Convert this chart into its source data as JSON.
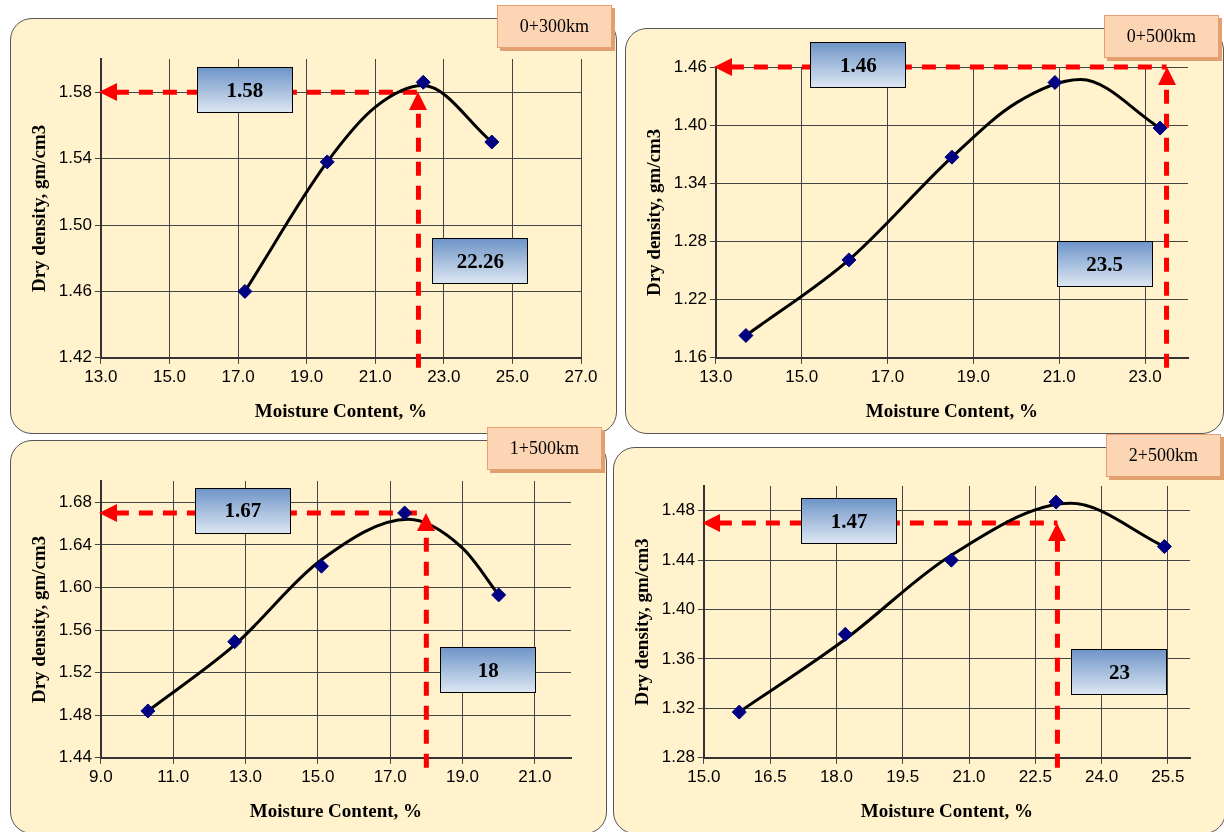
{
  "chart_data": [
    {
      "type": "scatter",
      "title": "0+300km",
      "xlabel": "Moisture Content, %",
      "ylabel": "Dry density, gm/cm3",
      "xlim": [
        13,
        27
      ],
      "xticks": [
        {
          "value": 13,
          "label": "13.0"
        },
        {
          "value": 15,
          "label": "15.0"
        },
        {
          "value": 17,
          "label": "17.0"
        },
        {
          "value": 19,
          "label": "19.0"
        },
        {
          "value": 21,
          "label": "21.0"
        },
        {
          "value": 23,
          "label": "23.0"
        },
        {
          "value": 25,
          "label": "25.0"
        },
        {
          "value": 27,
          "label": "27.0"
        }
      ],
      "ylim": [
        1.42,
        1.6
      ],
      "yticks": [
        1.42,
        1.46,
        {
          "value": 1.5,
          "label": "1.50"
        },
        1.54,
        1.58
      ],
      "grid": true,
      "legend": false,
      "series": [
        {
          "type": "scatter",
          "marker": "diamond",
          "color": "#000080",
          "x": [
            17.2,
            19.6,
            22.4,
            24.4
          ],
          "values": [
            1.46,
            1.538,
            1.586,
            1.55
          ]
        },
        {
          "type": "line",
          "marker": "none",
          "color": "#000000",
          "x": [
            17.2,
            19.6,
            21.0,
            22.4,
            24.4
          ],
          "values": [
            1.46,
            1.538,
            1.571,
            1.584,
            1.55
          ]
        }
      ],
      "ref_lines": [
        {
          "axis": "y",
          "value": 1.58,
          "label": "1.58",
          "color": "#ff0000",
          "line_style": "dashed"
        },
        {
          "axis": "x",
          "value": 22.26,
          "label": "22.26",
          "color": "#ff0000",
          "line_style": "dashed"
        }
      ]
    },
    {
      "type": "scatter",
      "title": "0+500km",
      "xlabel": "Moisture Content, %",
      "ylabel": "Dry density, gm/cm3",
      "xlim": [
        13,
        24
      ],
      "xticks": [
        {
          "value": 13,
          "label": "13.0"
        },
        {
          "value": 15,
          "label": "15.0"
        },
        {
          "value": 17,
          "label": "17.0"
        },
        {
          "value": 19,
          "label": "19.0"
        },
        {
          "value": 21,
          "label": "21.0"
        },
        {
          "value": 23,
          "label": "23.0"
        }
      ],
      "ylim": [
        1.16,
        1.46
      ],
      "yticks": [
        1.16,
        1.22,
        1.28,
        1.34,
        {
          "value": 1.4,
          "label": "1.40"
        },
        1.46
      ],
      "grid": true,
      "legend": false,
      "series": [
        {
          "type": "scatter",
          "marker": "diamond",
          "color": "#000080",
          "x": [
            13.7,
            16.1,
            18.5,
            20.9,
            23.35
          ],
          "values": [
            1.183,
            1.261,
            1.367,
            1.444,
            1.397
          ]
        },
        {
          "type": "line",
          "marker": "none",
          "color": "#000000",
          "x": [
            13.7,
            16.1,
            18.5,
            20.0,
            21.5,
            23.35
          ],
          "values": [
            1.183,
            1.261,
            1.367,
            1.423,
            1.447,
            1.397
          ]
        }
      ],
      "ref_lines": [
        {
          "axis": "y",
          "value": 1.46,
          "label": "1.46",
          "color": "#ff0000",
          "line_style": "dashed"
        },
        {
          "axis": "x",
          "value": 23.5,
          "label": "23.5",
          "color": "#ff0000",
          "line_style": "dashed"
        }
      ]
    },
    {
      "type": "scatter",
      "title": "1+500km",
      "xlabel": "Moisture Content, %",
      "ylabel": "Dry density, gm/cm3",
      "xlim": [
        9,
        22
      ],
      "xticks": [
        {
          "value": 9,
          "label": "9.0"
        },
        {
          "value": 11,
          "label": "11.0"
        },
        {
          "value": 13,
          "label": "13.0"
        },
        {
          "value": 15,
          "label": "15.0"
        },
        {
          "value": 17,
          "label": "17.0"
        },
        {
          "value": 19,
          "label": "19.0"
        },
        {
          "value": 21,
          "label": "21.0"
        }
      ],
      "ylim": [
        1.44,
        1.7
      ],
      "yticks": [
        1.44,
        1.48,
        1.52,
        1.56,
        {
          "value": 1.6,
          "label": "1.60"
        },
        1.64,
        1.68
      ],
      "grid": true,
      "legend": false,
      "series": [
        {
          "type": "scatter",
          "marker": "diamond",
          "color": "#000080",
          "x": [
            10.3,
            12.7,
            15.1,
            17.4,
            20.0
          ],
          "values": [
            1.484,
            1.549,
            1.62,
            1.67,
            1.593
          ]
        },
        {
          "type": "line",
          "marker": "none",
          "color": "#000000",
          "x": [
            10.3,
            12.7,
            15.1,
            17.5,
            19.0,
            20.0
          ],
          "values": [
            1.484,
            1.546,
            1.626,
            1.664,
            1.637,
            1.593
          ]
        }
      ],
      "ref_lines": [
        {
          "axis": "y",
          "value": 1.67,
          "label": "1.67",
          "color": "#ff0000",
          "line_style": "dashed"
        },
        {
          "axis": "x",
          "value": 18,
          "label": "18",
          "color": "#ff0000",
          "line_style": "dashed"
        }
      ]
    },
    {
      "type": "scatter",
      "title": "2+500km",
      "xlabel": "Moisture Content, %",
      "ylabel": "Dry density, gm/cm3",
      "xlim": [
        15,
        26
      ],
      "xticks": [
        {
          "value": 15,
          "label": "15.0"
        },
        16.5,
        {
          "value": 18,
          "label": "18.0"
        },
        19.5,
        {
          "value": 21,
          "label": "21.0"
        },
        22.5,
        {
          "value": 24,
          "label": "24.0"
        },
        25.5
      ],
      "ylim": [
        1.28,
        1.5
      ],
      "yticks": [
        1.28,
        1.32,
        1.36,
        {
          "value": 1.4,
          "label": "1.40"
        },
        1.44,
        1.48
      ],
      "grid": true,
      "legend": false,
      "series": [
        {
          "type": "scatter",
          "marker": "diamond",
          "color": "#000080",
          "x": [
            15.8,
            18.2,
            20.6,
            22.97,
            25.42
          ],
          "values": [
            1.317,
            1.38,
            1.44,
            1.487,
            1.451
          ]
        },
        {
          "type": "line",
          "marker": "none",
          "color": "#000000",
          "x": [
            15.8,
            18.2,
            20.6,
            23.3,
            25.42
          ],
          "values": [
            1.317,
            1.376,
            1.444,
            1.486,
            1.451
          ]
        }
      ],
      "ref_lines": [
        {
          "axis": "y",
          "value": 1.47,
          "label": "1.47",
          "color": "#ff0000",
          "line_style": "dashed"
        },
        {
          "axis": "x",
          "value": 23.0,
          "label": "23",
          "color": "#ff0000",
          "line_style": "dashed"
        }
      ]
    }
  ]
}
